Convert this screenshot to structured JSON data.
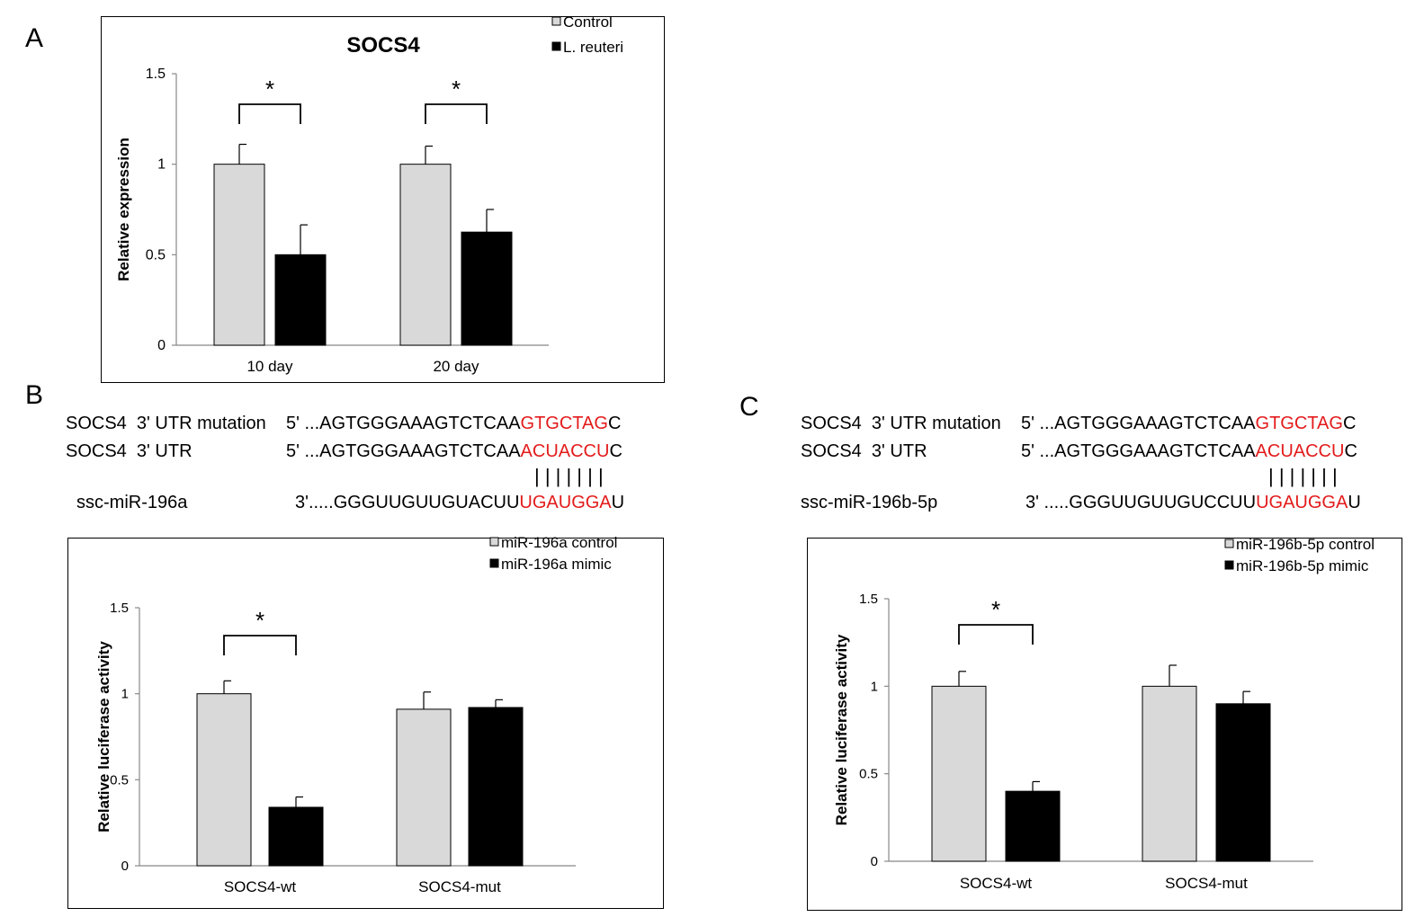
{
  "panels": {
    "A": "A",
    "B": "B",
    "C": "C"
  },
  "colors": {
    "control": "#d9d9d9",
    "treatment": "#000000",
    "highlight": "#e31b1b"
  },
  "sequences": {
    "B": {
      "mut_label": "SOCS4  3' UTR mutation",
      "mut_prefix": "5' ...AGTGGGAAAGTCTCAA",
      "mut_red": "GTGCTAG",
      "mut_suffix": "C",
      "utr_label": "SOCS4  3' UTR",
      "utr_prefix": "5' ...AGTGGGAAAGTCTCAA",
      "utr_red": "ACUACCU",
      "utr_suffix": "C",
      "pairing": "| | | | | | |",
      "mir_label": "ssc-miR-196a",
      "mir_prefix": "3'.....GGGUUGUUGUACUU",
      "mir_red": "UGAUGGA",
      "mir_suffix": "U"
    },
    "C": {
      "mut_label": "SOCS4  3' UTR mutation",
      "mut_prefix": "5' ...AGTGGGAAAGTCTCAA",
      "mut_red": "GTGCTAG",
      "mut_suffix": "C",
      "utr_label": "SOCS4  3' UTR",
      "utr_prefix": "5' ...AGTGGGAAAGTCTCAA",
      "utr_red": "ACUACCU",
      "utr_suffix": "C",
      "pairing": "| | | | | | |",
      "mir_label": "ssc-miR-196b-5p",
      "mir_prefix": "3' .....GGGUUGUUGUCCUU",
      "mir_red": "UGAUGGA",
      "mir_suffix": "U"
    }
  },
  "chart_data": [
    {
      "id": "A",
      "type": "bar",
      "title": "SOCS4",
      "ylabel": "Relative expression",
      "xlabel": "",
      "ylim": [
        0,
        1.5
      ],
      "yticks": [
        "0",
        "0.5",
        "1",
        "1.5"
      ],
      "categories": [
        "10 day",
        "20 day"
      ],
      "series": [
        {
          "name": "Control",
          "values": [
            1.0,
            1.0
          ],
          "errors": [
            0.11,
            0.1
          ]
        },
        {
          "name": "L. reuteri",
          "values": [
            0.5,
            0.625
          ],
          "errors": [
            0.165,
            0.125
          ]
        }
      ],
      "significance": [
        "*",
        "*"
      ],
      "legend": "top-right",
      "grid": false
    },
    {
      "id": "B",
      "type": "bar",
      "title": "",
      "ylabel": "Relative luciferase activity",
      "xlabel": "",
      "ylim": [
        0,
        1.5
      ],
      "yticks": [
        "0",
        "0.5",
        "1",
        "1.5"
      ],
      "categories": [
        "SOCS4-wt",
        "SOCS4-mut"
      ],
      "series": [
        {
          "name": "miR-196a control",
          "values": [
            1.0,
            0.91
          ],
          "errors": [
            0.075,
            0.1
          ]
        },
        {
          "name": "miR-196a mimic",
          "values": [
            0.34,
            0.92
          ],
          "errors": [
            0.06,
            0.045
          ]
        }
      ],
      "significance": [
        "*",
        ""
      ],
      "legend": "top-right",
      "grid": false
    },
    {
      "id": "C",
      "type": "bar",
      "title": "",
      "ylabel": "Relative luciferase activity",
      "xlabel": "",
      "ylim": [
        0,
        1.5
      ],
      "yticks": [
        "0",
        "0.5",
        "1",
        "1.5"
      ],
      "categories": [
        "SOCS4-wt",
        "SOCS4-mut"
      ],
      "series": [
        {
          "name": "miR-196b-5p control",
          "values": [
            1.0,
            1.0
          ],
          "errors": [
            0.085,
            0.12
          ]
        },
        {
          "name": "miR-196b-5p mimic",
          "values": [
            0.4,
            0.9
          ],
          "errors": [
            0.055,
            0.07
          ]
        }
      ],
      "significance": [
        "*",
        ""
      ],
      "legend": "top-right",
      "grid": false
    }
  ]
}
